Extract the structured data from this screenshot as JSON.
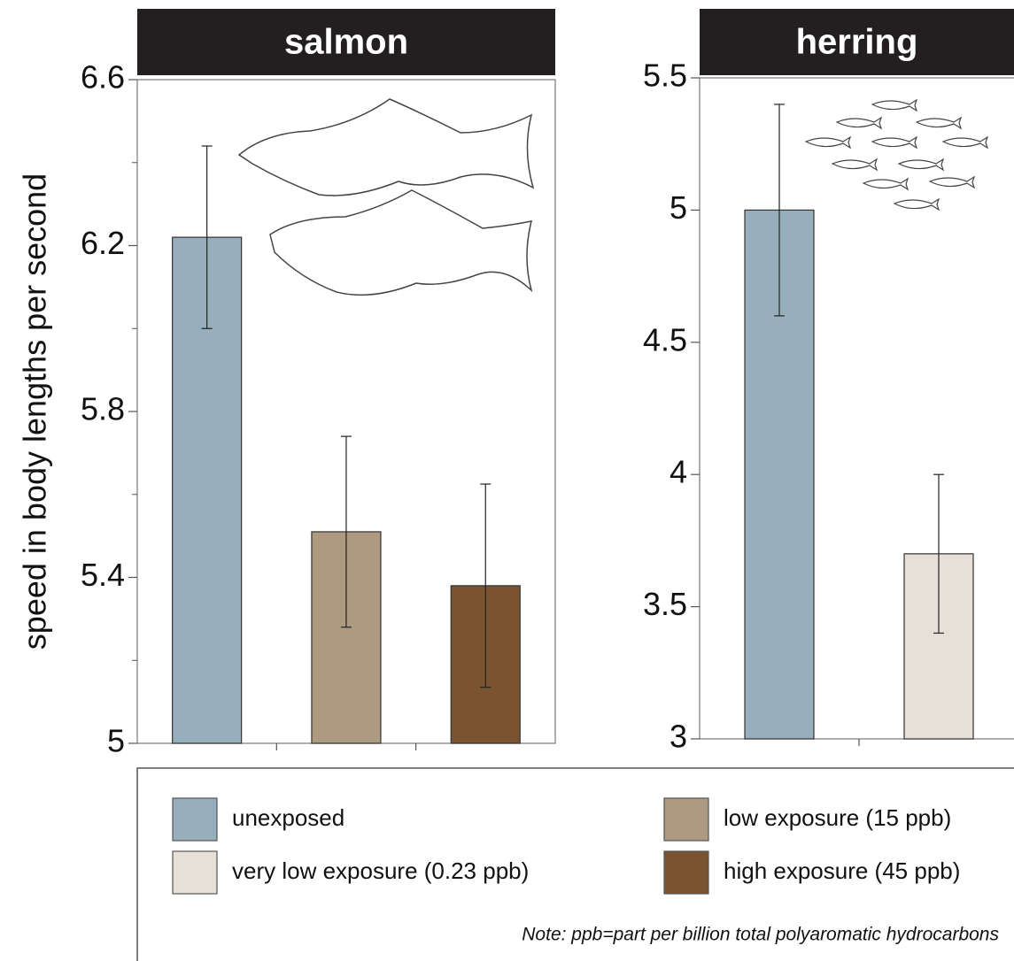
{
  "chart_data": [
    {
      "type": "bar",
      "title": "salmon",
      "ylabel": "speed in body lengths per second",
      "categories": [
        null,
        null,
        null
      ],
      "values": [
        6.22,
        5.51,
        5.38
      ],
      "errors": [
        0.22,
        0.23,
        0.245
      ],
      "colors": [
        "#97aebd",
        "#ad9a80",
        "#7a5430"
      ],
      "ylim": [
        5,
        6.6
      ],
      "yticks": [
        5,
        5.4,
        5.8,
        6.2,
        6.6
      ],
      "minor_yticks": [
        5.2,
        5.6,
        6.0,
        6.4
      ]
    },
    {
      "type": "bar",
      "title": "herring",
      "categories": [
        null,
        null
      ],
      "values": [
        5.0,
        3.7
      ],
      "errors": [
        0.4,
        0.3
      ],
      "colors": [
        "#97aebd",
        "#e6e0d8"
      ],
      "ylim": [
        3,
        5.5
      ],
      "yticks": [
        3,
        3.5,
        4,
        4.5,
        5,
        5.5
      ]
    }
  ],
  "legend": {
    "items": [
      {
        "name": "unexposed",
        "color": "#97aebd"
      },
      {
        "name": "very low exposure (0.23 ppb)",
        "color": "#e6e0d8"
      },
      {
        "name": "low exposure (15 ppb)",
        "color": "#ad9a80"
      },
      {
        "name": "high exposure (45 ppb)",
        "color": "#7a5430"
      }
    ],
    "note": "Note: ppb=part per billion total polyaromatic hydrocarbons"
  }
}
